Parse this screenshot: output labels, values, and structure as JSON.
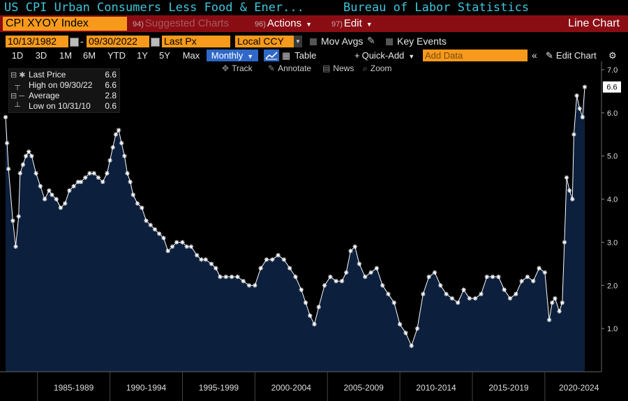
{
  "header": {
    "title": "US CPI Urban Consumers Less Food & Ener...",
    "source": "Bureau of Labor Statistics"
  },
  "command_bar": {
    "ticker": "CPI XYOY Index",
    "suggested_num": "94)",
    "suggested_label": "Suggested Charts",
    "actions_num": "96)",
    "actions_label": "Actions",
    "edit_num": "97)",
    "edit_label": "Edit",
    "chart_type": "Line Chart"
  },
  "settings_bar": {
    "start_date": "10/13/1982",
    "date_separator": "-",
    "end_date": "09/30/2022",
    "price_field": "Last Px",
    "currency": "Local CCY",
    "mov_avgs_label": "Mov Avgs",
    "key_events_label": "Key Events"
  },
  "range_bar": {
    "ranges": [
      "1D",
      "3D",
      "1M",
      "6M",
      "YTD",
      "1Y",
      "5Y",
      "Max"
    ],
    "frequency": "Monthly",
    "table_label": "Table",
    "quick_add_label": "Quick-Add",
    "add_data_placeholder": "Add Data",
    "edit_chart_label": "Edit Chart"
  },
  "toolbar": {
    "track": "Track",
    "annotate": "Annotate",
    "news": "News",
    "zoom": "Zoom"
  },
  "legend": {
    "rows": [
      {
        "label": "Last Price",
        "value": "6.6"
      },
      {
        "label": "High on 09/30/22",
        "value": "6.6"
      },
      {
        "label": "Average",
        "value": "2.8"
      },
      {
        "label": "Low on 10/31/10",
        "value": "0.6"
      }
    ]
  },
  "colors": {
    "accent_cyan": "#3ec6dc",
    "command_red": "#8b0d14",
    "field_orange": "#f79a1b",
    "active_blue": "#2f68c8",
    "area_fill": "#0c1f3c",
    "line": "#ffffff"
  },
  "chart_data": {
    "type": "area",
    "title": "US CPI Urban Consumers Less Food & Energy YoY (CPI XYOY Index)",
    "xlabel": "",
    "ylabel": "",
    "x_range": [
      1982.8,
      2022.75
    ],
    "ylim": [
      0.0,
      7.0
    ],
    "y_ticks": [
      "1.0",
      "2.0",
      "3.0",
      "4.0",
      "5.0",
      "6.0",
      "7.0"
    ],
    "x_tick_labels": [
      "1985-1989",
      "1990-1994",
      "1995-1999",
      "2000-2004",
      "2005-2009",
      "2010-2014",
      "2015-2019",
      "2020-2024"
    ],
    "last_value_label": "6.6",
    "series": [
      {
        "name": "Last Price",
        "x": [
          1982.8,
          1982.9,
          1983.0,
          1983.3,
          1983.5,
          1983.7,
          1983.8,
          1984.0,
          1984.2,
          1984.4,
          1984.6,
          1984.9,
          1985.2,
          1985.5,
          1985.8,
          1986.0,
          1986.3,
          1986.6,
          1986.9,
          1987.2,
          1987.5,
          1987.8,
          1988.0,
          1988.3,
          1988.6,
          1988.9,
          1989.2,
          1989.5,
          1989.8,
          1990.0,
          1990.2,
          1990.4,
          1990.6,
          1990.8,
          1991.0,
          1991.2,
          1991.4,
          1991.6,
          1991.9,
          1992.2,
          1992.5,
          1992.8,
          1993.1,
          1993.4,
          1993.7,
          1994.0,
          1994.3,
          1994.6,
          1995.0,
          1995.3,
          1995.6,
          1996.0,
          1996.3,
          1996.6,
          1997.0,
          1997.3,
          1997.6,
          1998.0,
          1998.4,
          1998.8,
          1999.2,
          1999.6,
          2000.0,
          2000.4,
          2000.8,
          2001.2,
          2001.6,
          2002.0,
          2002.4,
          2002.8,
          2003.2,
          2003.5,
          2003.8,
          2004.1,
          2004.4,
          2004.8,
          2005.2,
          2005.6,
          2006.0,
          2006.3,
          2006.6,
          2006.9,
          2007.2,
          2007.6,
          2008.0,
          2008.4,
          2008.8,
          2009.2,
          2009.6,
          2010.0,
          2010.4,
          2010.8,
          2011.2,
          2011.6,
          2012.0,
          2012.4,
          2012.8,
          2013.2,
          2013.6,
          2014.0,
          2014.4,
          2014.8,
          2015.2,
          2015.6,
          2016.0,
          2016.4,
          2016.8,
          2017.2,
          2017.6,
          2018.0,
          2018.4,
          2018.8,
          2019.2,
          2019.6,
          2020.0,
          2020.3,
          2020.5,
          2020.7,
          2021.0,
          2021.2,
          2021.35,
          2021.5,
          2021.7,
          2021.9,
          2022.0,
          2022.2,
          2022.4,
          2022.6,
          2022.75
        ],
        "values": [
          5.9,
          5.3,
          4.7,
          3.5,
          2.9,
          3.6,
          4.6,
          4.8,
          5.0,
          5.1,
          5.0,
          4.6,
          4.3,
          4.0,
          4.2,
          4.1,
          4.0,
          3.8,
          3.9,
          4.2,
          4.3,
          4.4,
          4.4,
          4.5,
          4.6,
          4.6,
          4.5,
          4.4,
          4.6,
          4.9,
          5.2,
          5.5,
          5.6,
          5.3,
          5.0,
          4.6,
          4.4,
          4.1,
          3.9,
          3.8,
          3.5,
          3.4,
          3.3,
          3.2,
          3.1,
          2.8,
          2.9,
          3.0,
          3.0,
          2.9,
          2.9,
          2.7,
          2.6,
          2.6,
          2.5,
          2.4,
          2.2,
          2.2,
          2.2,
          2.2,
          2.1,
          2.0,
          2.0,
          2.4,
          2.6,
          2.6,
          2.7,
          2.6,
          2.4,
          2.2,
          1.9,
          1.6,
          1.3,
          1.1,
          1.5,
          2.0,
          2.2,
          2.1,
          2.1,
          2.3,
          2.8,
          2.9,
          2.5,
          2.2,
          2.3,
          2.4,
          2.0,
          1.8,
          1.6,
          1.1,
          0.9,
          0.6,
          1.0,
          1.8,
          2.2,
          2.3,
          2.0,
          1.8,
          1.7,
          1.6,
          1.9,
          1.7,
          1.7,
          1.8,
          2.2,
          2.2,
          2.2,
          1.9,
          1.7,
          1.8,
          2.1,
          2.2,
          2.1,
          2.4,
          2.3,
          1.2,
          1.6,
          1.7,
          1.4,
          1.6,
          3.0,
          4.5,
          4.2,
          4.0,
          5.5,
          6.4,
          6.1,
          5.9,
          6.6
        ]
      }
    ]
  }
}
